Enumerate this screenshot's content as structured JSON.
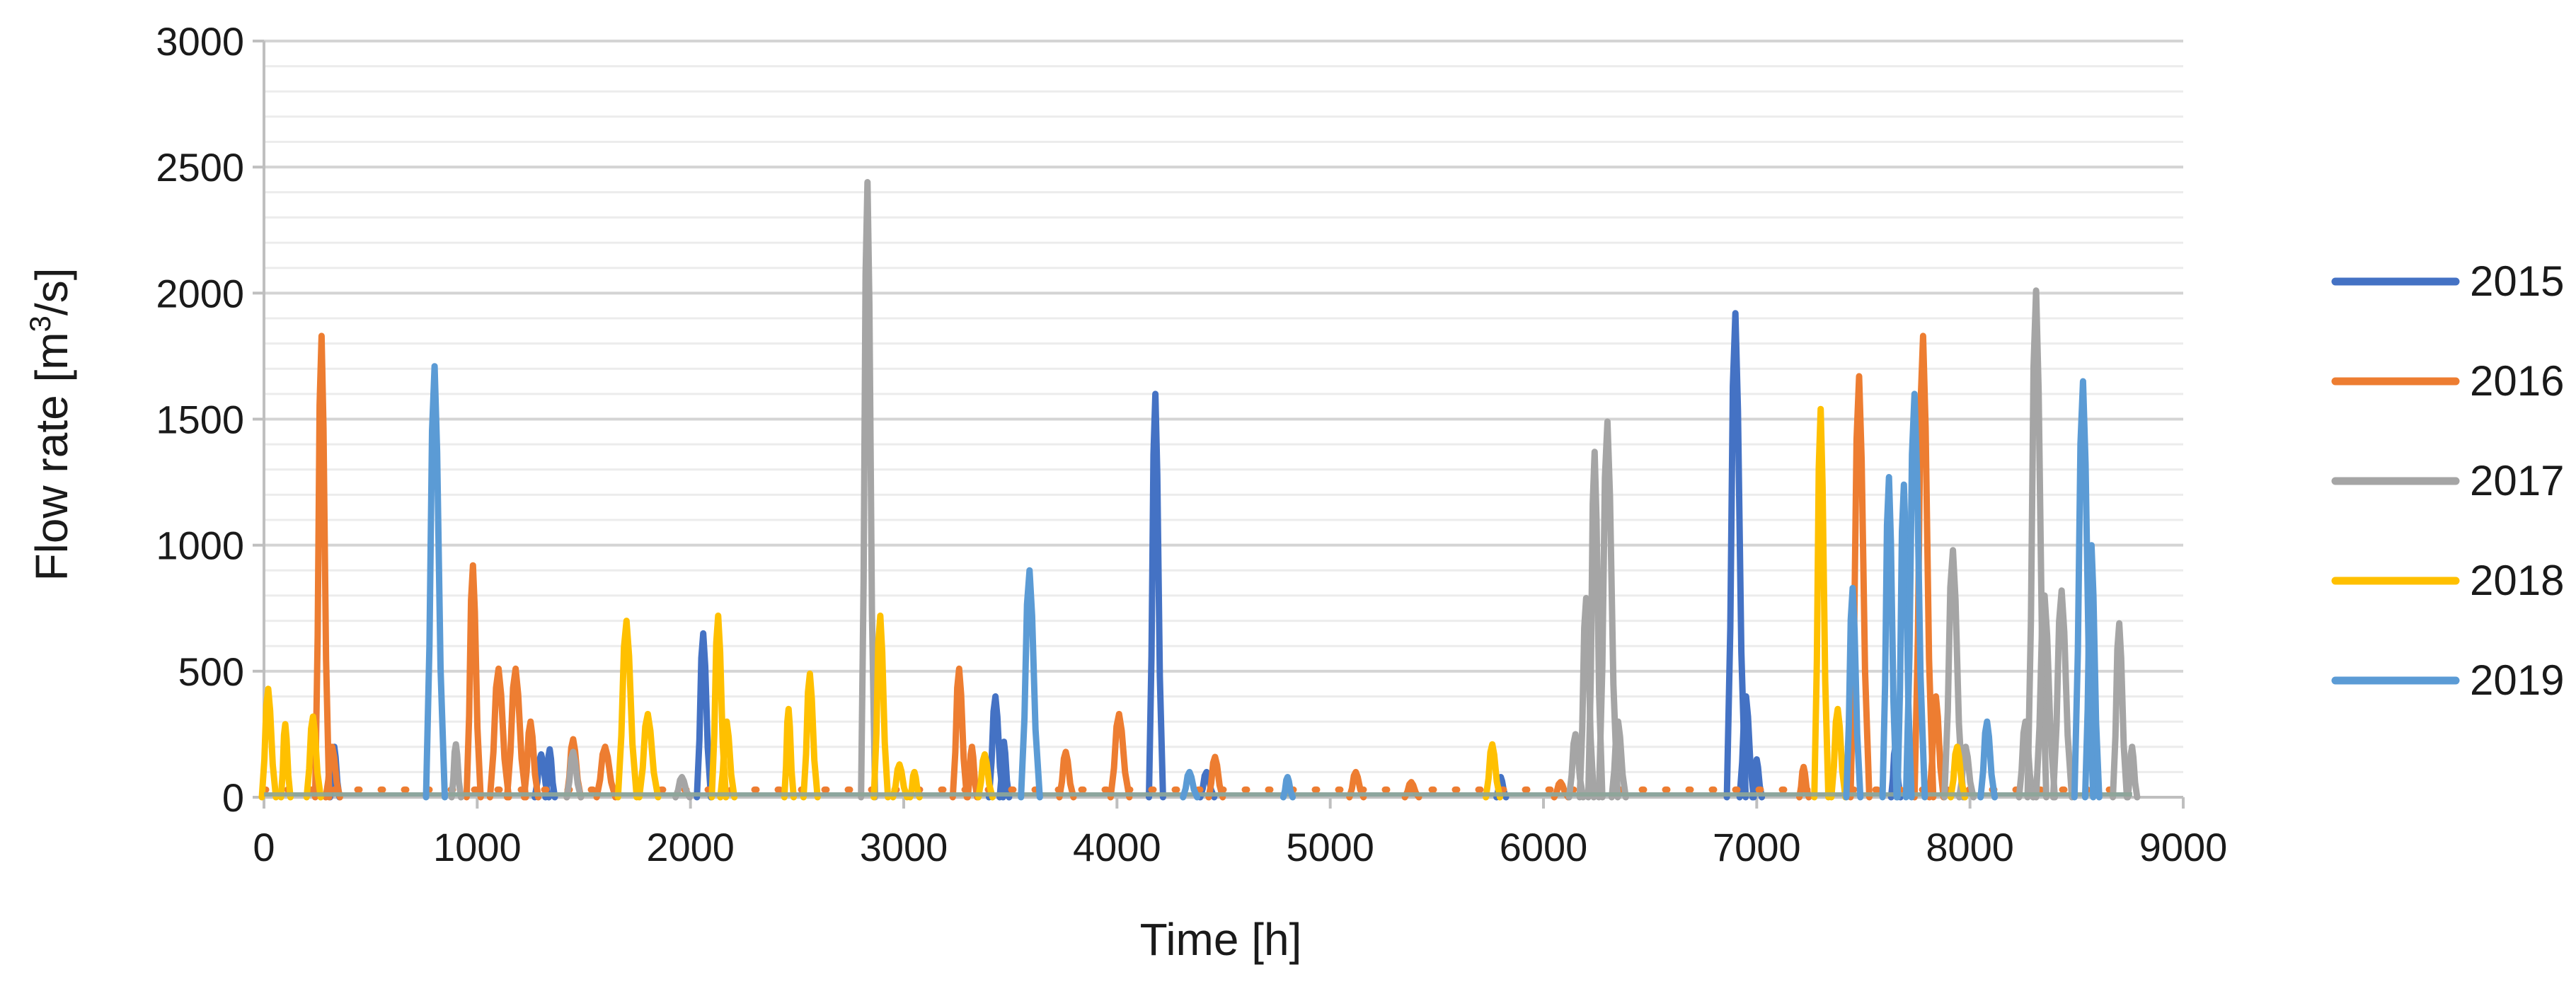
{
  "chart_data": {
    "type": "line",
    "xlabel": "Time [h]",
    "ylabel_main": "Flow rate  [m",
    "ylabel_sup": "3",
    "ylabel_tail": "/s]",
    "xlim": [
      0,
      9000
    ],
    "ylim": [
      0,
      3000
    ],
    "xticks": [
      0,
      1000,
      2000,
      3000,
      4000,
      5000,
      6000,
      7000,
      8000,
      9000
    ],
    "yticks": [
      0,
      500,
      1000,
      1500,
      2000,
      2500,
      3000
    ],
    "minor_gridlines_per_major": 5,
    "grid": true,
    "legend_position": "right",
    "baseline_value": 30,
    "series": [
      {
        "name": "2015",
        "color": "#4472C4",
        "baseline_dotted": false,
        "peaks": [
          [
            330,
            200,
            20
          ],
          [
            1300,
            170,
            30
          ],
          [
            1340,
            190,
            20
          ],
          [
            2060,
            650,
            30
          ],
          [
            3430,
            400,
            30
          ],
          [
            3470,
            220,
            20
          ],
          [
            4180,
            1600,
            30
          ],
          [
            4420,
            100,
            30
          ],
          [
            5800,
            80,
            20
          ],
          [
            6900,
            1920,
            40
          ],
          [
            6950,
            400,
            30
          ],
          [
            7000,
            150,
            20
          ],
          [
            7650,
            200,
            20
          ]
        ]
      },
      {
        "name": "2016",
        "color": "#ED7D31",
        "baseline_dotted": true,
        "peaks": [
          [
            270,
            1830,
            30
          ],
          [
            320,
            200,
            30
          ],
          [
            980,
            920,
            30
          ],
          [
            1100,
            510,
            40
          ],
          [
            1180,
            510,
            40
          ],
          [
            1250,
            300,
            30
          ],
          [
            1450,
            230,
            30
          ],
          [
            1600,
            200,
            40
          ],
          [
            3260,
            510,
            30
          ],
          [
            3320,
            200,
            20
          ],
          [
            3760,
            180,
            30
          ],
          [
            4010,
            330,
            40
          ],
          [
            4460,
            160,
            30
          ],
          [
            5120,
            100,
            30
          ],
          [
            5380,
            60,
            30
          ],
          [
            6080,
            60,
            30
          ],
          [
            7220,
            120,
            20
          ],
          [
            7480,
            1670,
            40
          ],
          [
            7780,
            1830,
            40
          ],
          [
            7840,
            400,
            30
          ]
        ]
      },
      {
        "name": "2017",
        "color": "#A5A5A5",
        "baseline_dotted": false,
        "peaks": [
          [
            900,
            210,
            20
          ],
          [
            1450,
            180,
            30
          ],
          [
            1960,
            80,
            30
          ],
          [
            2830,
            2440,
            30
          ],
          [
            6150,
            250,
            30
          ],
          [
            6200,
            790,
            30
          ],
          [
            6240,
            1370,
            30
          ],
          [
            6300,
            1490,
            40
          ],
          [
            6350,
            300,
            30
          ],
          [
            7920,
            980,
            40
          ],
          [
            7980,
            200,
            30
          ],
          [
            8260,
            300,
            30
          ],
          [
            8310,
            2010,
            40
          ],
          [
            8350,
            800,
            40
          ],
          [
            8430,
            820,
            40
          ],
          [
            8700,
            690,
            30
          ],
          [
            8760,
            200,
            20
          ]
        ]
      },
      {
        "name": "2018",
        "color": "#FFC000",
        "baseline_dotted": false,
        "peaks": [
          [
            20,
            430,
            30
          ],
          [
            100,
            290,
            20
          ],
          [
            230,
            320,
            30
          ],
          [
            1700,
            700,
            40
          ],
          [
            1800,
            330,
            40
          ],
          [
            2130,
            720,
            30
          ],
          [
            2170,
            300,
            30
          ],
          [
            2460,
            350,
            20
          ],
          [
            2560,
            490,
            30
          ],
          [
            2890,
            720,
            30
          ],
          [
            2980,
            130,
            30
          ],
          [
            3050,
            100,
            20
          ],
          [
            3380,
            170,
            30
          ],
          [
            5760,
            210,
            30
          ],
          [
            7300,
            1540,
            30
          ],
          [
            7380,
            350,
            30
          ],
          [
            7940,
            200,
            30
          ]
        ]
      },
      {
        "name": "2019",
        "color": "#5B9BD5",
        "baseline_dotted": false,
        "peaks": [
          [
            800,
            1710,
            40
          ],
          [
            3590,
            900,
            40
          ],
          [
            4340,
            100,
            30
          ],
          [
            4800,
            80,
            20
          ],
          [
            7450,
            830,
            30
          ],
          [
            7620,
            1270,
            30
          ],
          [
            7690,
            1240,
            30
          ],
          [
            7740,
            1600,
            40
          ],
          [
            8080,
            300,
            30
          ],
          [
            8530,
            1650,
            40
          ],
          [
            8570,
            1000,
            30
          ]
        ]
      }
    ]
  }
}
